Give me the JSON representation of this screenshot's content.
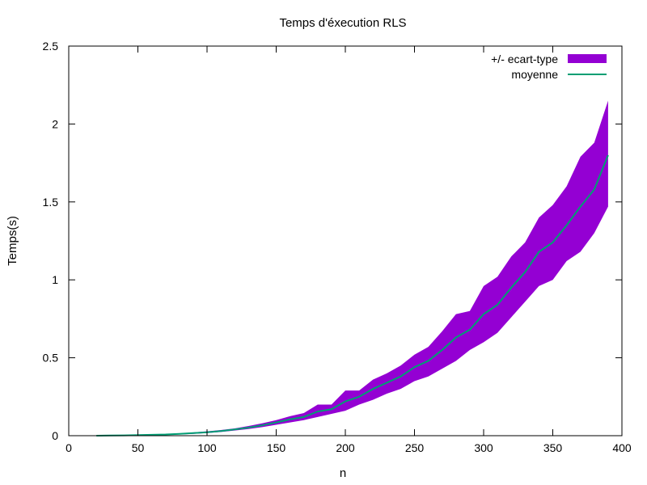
{
  "chart_data": {
    "type": "area",
    "title": "Temps d'éxecution RLS",
    "xlabel": "n",
    "ylabel": "Temps(s)",
    "xlim": [
      0,
      400
    ],
    "ylim": [
      0,
      2.5
    ],
    "xticks": [
      0,
      50,
      100,
      150,
      200,
      250,
      300,
      350,
      400
    ],
    "yticks": [
      0,
      0.5,
      1,
      1.5,
      2,
      2.5
    ],
    "xtick_labels": [
      "0",
      "50",
      "100",
      "150",
      "200",
      "250",
      "300",
      "350",
      "400"
    ],
    "ytick_labels": [
      "0",
      "0.5",
      "1",
      "1.5",
      "2",
      "2.5"
    ],
    "grid": false,
    "legend_position": "top-right",
    "x": [
      20,
      30,
      40,
      50,
      60,
      70,
      80,
      90,
      100,
      110,
      120,
      130,
      140,
      150,
      160,
      170,
      180,
      190,
      200,
      210,
      220,
      230,
      240,
      250,
      260,
      270,
      280,
      290,
      300,
      310,
      320,
      330,
      340,
      350,
      360,
      370,
      380,
      390
    ],
    "series": [
      {
        "name": "+/- ecart-type",
        "kind": "band",
        "color": "#9400d3",
        "lower": [
          0.0,
          0.0,
          0.001,
          0.002,
          0.003,
          0.005,
          0.008,
          0.012,
          0.017,
          0.024,
          0.033,
          0.043,
          0.055,
          0.07,
          0.085,
          0.1,
          0.12,
          0.14,
          0.16,
          0.2,
          0.23,
          0.27,
          0.3,
          0.35,
          0.38,
          0.43,
          0.48,
          0.55,
          0.6,
          0.66,
          0.76,
          0.86,
          0.96,
          1.0,
          1.12,
          1.18,
          1.3,
          1.47
        ],
        "upper": [
          0.0,
          0.001,
          0.003,
          0.005,
          0.008,
          0.011,
          0.015,
          0.021,
          0.028,
          0.036,
          0.047,
          0.062,
          0.08,
          0.1,
          0.125,
          0.145,
          0.2,
          0.2,
          0.29,
          0.29,
          0.36,
          0.4,
          0.45,
          0.52,
          0.57,
          0.67,
          0.78,
          0.8,
          0.96,
          1.02,
          1.15,
          1.24,
          1.4,
          1.48,
          1.6,
          1.79,
          1.88,
          2.15
        ]
      },
      {
        "name": "moyenne",
        "kind": "line",
        "color": "#009e73",
        "values": [
          0.0,
          0.001,
          0.002,
          0.004,
          0.006,
          0.008,
          0.012,
          0.017,
          0.022,
          0.03,
          0.04,
          0.052,
          0.067,
          0.085,
          0.105,
          0.12,
          0.155,
          0.17,
          0.22,
          0.25,
          0.3,
          0.34,
          0.38,
          0.44,
          0.48,
          0.55,
          0.63,
          0.68,
          0.78,
          0.84,
          0.95,
          1.05,
          1.18,
          1.24,
          1.35,
          1.47,
          1.58,
          1.8
        ]
      }
    ]
  }
}
